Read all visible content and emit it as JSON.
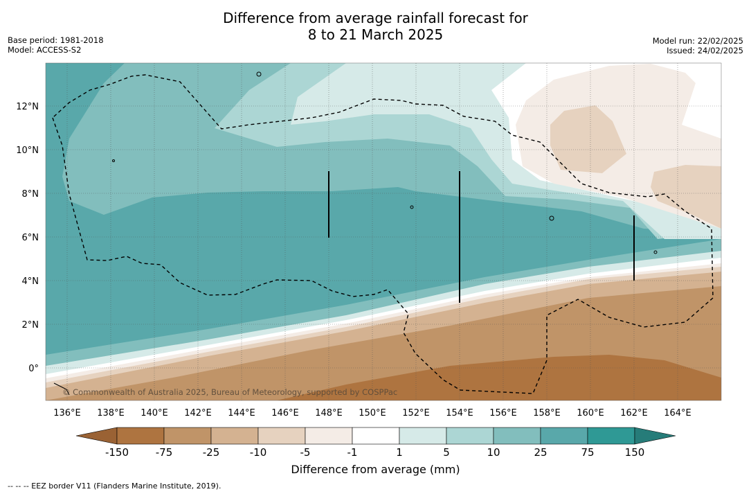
{
  "title_line1": "Difference from average rainfall forecast for",
  "title_line2": "8 to 21 March 2025",
  "meta_left": [
    "Base period: 1981-2018",
    "Model: ACCESS-S2"
  ],
  "meta_right": [
    "Model run: 22/02/2025",
    "Issued: 24/02/2025"
  ],
  "map": {
    "lon_range": [
      135,
      166
    ],
    "lat_range": [
      -1.5,
      14
    ],
    "lon_ticks": [
      "136°E",
      "138°E",
      "140°E",
      "142°E",
      "144°E",
      "146°E",
      "148°E",
      "150°E",
      "152°E",
      "154°E",
      "156°E",
      "158°E",
      "160°E",
      "162°E",
      "164°E"
    ],
    "lat_ticks": [
      "12°N",
      "10°N",
      "8°N",
      "6°N",
      "4°N",
      "2°N",
      "0°"
    ],
    "grid": true,
    "copyright": "© Commonwealth of Australia 2025, Bureau of Meteorology, supported by COSPPac"
  },
  "colorbar": {
    "title": "Difference from average (mm)",
    "tick_labels": [
      "-150",
      "-75",
      "-25",
      "-10",
      "-5",
      "-1",
      "1",
      "5",
      "10",
      "25",
      "75",
      "150"
    ],
    "colors": [
      "#ae7440",
      "#c09468",
      "#d4b291",
      "#e6d2bf",
      "#f4ece6",
      "#ffffff",
      "#d6eae8",
      "#acd6d4",
      "#82bebd",
      "#59a8aa",
      "#2f9995"
    ],
    "extend_low_color": "#9a6234",
    "extend_high_color": "#267c79"
  },
  "footer": "-- -- -- EEZ border V11 (Flanders Marine Institute, 2019)."
}
